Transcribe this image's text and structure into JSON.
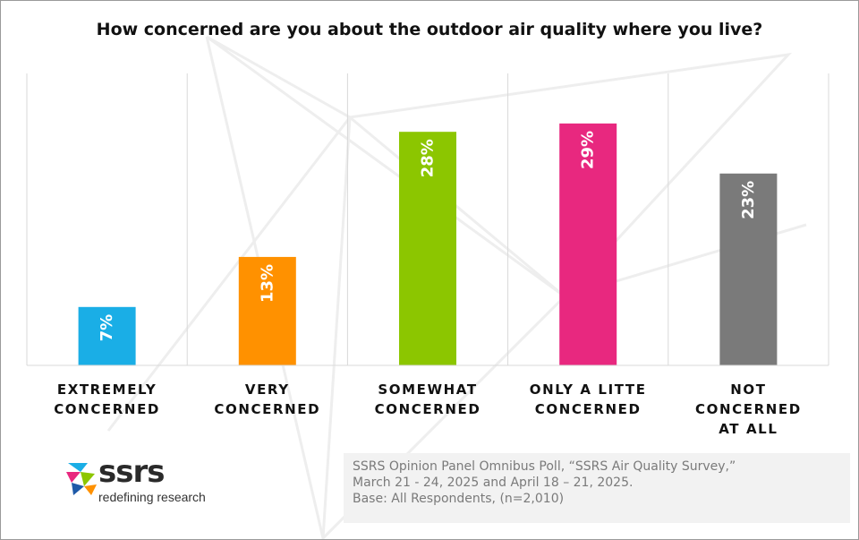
{
  "chart_data": {
    "type": "bar",
    "title": "How concerned are you about the outdoor air quality where you live?",
    "categories": [
      "EXTREMELY CONCERNED",
      "VERY CONCERNED",
      "SOMEWHAT CONCERNED",
      "ONLY A LITTE CONCERNED",
      "NOT CONCERNED AT ALL"
    ],
    "category_lines": [
      [
        "EXTREMELY",
        "CONCERNED"
      ],
      [
        "VERY",
        "CONCERNED"
      ],
      [
        "SOMEWHAT",
        "CONCERNED"
      ],
      [
        "ONLY A LITTE",
        "CONCERNED"
      ],
      [
        "NOT CONCERNED",
        "AT ALL"
      ]
    ],
    "values": [
      7,
      13,
      28,
      29,
      23
    ],
    "data_labels": [
      "7%",
      "13%",
      "28%",
      "29%",
      "23%"
    ],
    "colors": [
      "#1aaee6",
      "#ff9100",
      "#8cc600",
      "#e8287f",
      "#7a7a7a"
    ],
    "ylim": [
      0,
      35
    ],
    "xlabel": "",
    "ylabel": "",
    "legend": "none",
    "grid": "vertical separators"
  },
  "logo": {
    "wordmark": "ssrs",
    "tagline": "redefining research"
  },
  "source": {
    "line1": "SSRS Opinion Panel Omnibus Poll, “SSRS Air Quality Survey,”",
    "line2": "March 21 - 24, 2025 and April 18 – 21, 2025.",
    "line3": "Base: All Respondents, (n=2,010)"
  }
}
